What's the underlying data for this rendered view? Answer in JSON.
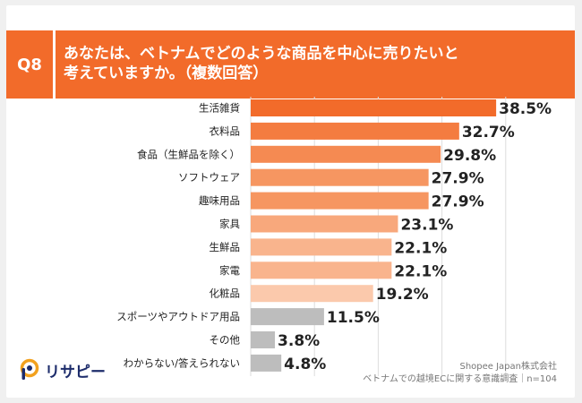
{
  "header": {
    "badge": "Q8",
    "question": "あなたは、ベトナムでどのような商品を中心に売りたいと\n考えていますか。（複数回答）"
  },
  "colors": {
    "accent": "#f26b2a",
    "gray_bar": "#bdbdbd",
    "grid": "#dddddd"
  },
  "chart_data": {
    "type": "bar",
    "orientation": "horizontal",
    "title": "あなたは、ベトナムでどのような商品を中心に売りたいと考えていますか。（複数回答）",
    "categories": [
      "生活雑貨",
      "衣料品",
      "食品（生鮮品を除く）",
      "ソフトウェア",
      "趣味用品",
      "家具",
      "生鮮品",
      "家電",
      "化粧品",
      "スポーツやアウトドア用品",
      "その他",
      "わからない/答えられない"
    ],
    "values": [
      38.5,
      32.7,
      29.8,
      27.9,
      27.9,
      23.1,
      22.1,
      22.1,
      19.2,
      11.5,
      3.8,
      4.8
    ],
    "labels": [
      "38.5%",
      "32.7%",
      "29.8%",
      "27.9%",
      "27.9%",
      "23.1%",
      "22.1%",
      "22.1%",
      "19.2%",
      "11.5%",
      "3.8%",
      "4.8%"
    ],
    "bar_colors": [
      "#f26b2a",
      "#f47c40",
      "#f58a52",
      "#f69661",
      "#f69661",
      "#f8a87c",
      "#f9b48d",
      "#f9b48d",
      "#fbc9ac",
      "#bdbdbd",
      "#bdbdbd",
      "#bdbdbd"
    ],
    "xlim": [
      0,
      45
    ],
    "grid": true,
    "unit": "%"
  },
  "footer": {
    "logo_text": "リサピー",
    "credit_line1": "Shopee Japan株式会社",
    "credit_line2": "ベトナムでの越境ECに関する意識調査｜n=104"
  }
}
